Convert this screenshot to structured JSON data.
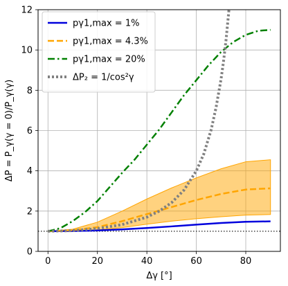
{
  "chart_data": {
    "type": "line",
    "xlabel": "Δγ [°]",
    "ylabel": "ΔP = P_γ(γ = 0)/P_γ(γ)",
    "xlim": [
      -4,
      94
    ],
    "ylim": [
      0,
      12
    ],
    "xticks": [
      0,
      20,
      40,
      60,
      80
    ],
    "yticks": [
      0,
      2,
      4,
      6,
      8,
      10,
      12
    ],
    "grid": true,
    "legend_position": "top-left",
    "reference_line": {
      "y": 1,
      "style": "dotted",
      "color": "#000000"
    },
    "series": [
      {
        "name": "p_{γ1,max} = 1%",
        "legend_label": "pγ1,max = 1%",
        "color": "#0000dd",
        "style": "solid",
        "x": [
          0,
          10,
          20,
          30,
          40,
          50,
          60,
          70,
          80,
          90
        ],
        "y": [
          1.0,
          1.01,
          1.04,
          1.09,
          1.16,
          1.24,
          1.33,
          1.41,
          1.47,
          1.49
        ]
      },
      {
        "name": "p_{γ1,max} = 4.3%",
        "legend_label": "pγ1,max = 4.3%",
        "color": "#ffa500",
        "style": "dashed",
        "x": [
          0,
          10,
          20,
          30,
          40,
          50,
          60,
          70,
          80,
          90
        ],
        "y": [
          1.0,
          1.05,
          1.2,
          1.5,
          1.85,
          2.2,
          2.55,
          2.85,
          3.07,
          3.13
        ],
        "band_lower": [
          1.0,
          1.02,
          1.06,
          1.18,
          1.35,
          1.5,
          1.62,
          1.72,
          1.8,
          1.83
        ],
        "band_upper": [
          1.0,
          1.1,
          1.45,
          2.0,
          2.6,
          3.15,
          3.65,
          4.1,
          4.45,
          4.55
        ]
      },
      {
        "name": "p_{γ1,max} = 20%",
        "legend_label": "pγ1,max = 20%",
        "color": "#008000",
        "style": "dashdot",
        "x": [
          0,
          5,
          10,
          15,
          20,
          25,
          30,
          35,
          40,
          45,
          50,
          55,
          60,
          65,
          70,
          75,
          80,
          85,
          90
        ],
        "y": [
          1.0,
          1.15,
          1.5,
          1.95,
          2.5,
          3.2,
          3.9,
          4.55,
          5.3,
          6.05,
          6.9,
          7.75,
          8.5,
          9.25,
          9.9,
          10.4,
          10.75,
          10.95,
          11.0
        ]
      },
      {
        "name": "ΔP2 = 1/cos²γ",
        "legend_label": "ΔP₂ = 1/cos²γ",
        "color": "#808080",
        "style": "dotted",
        "x": [
          0,
          10,
          20,
          30,
          40,
          45,
          50,
          55,
          60,
          63,
          66,
          68,
          70,
          71,
          72,
          73.2
        ],
        "y": [
          1.0,
          1.03,
          1.13,
          1.33,
          1.7,
          2.0,
          2.42,
          3.04,
          4.0,
          4.83,
          6.04,
          7.15,
          8.55,
          9.43,
          10.47,
          12.0
        ]
      }
    ]
  }
}
